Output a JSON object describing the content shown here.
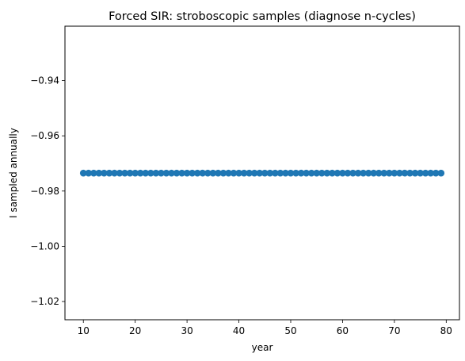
{
  "chart_data": {
    "type": "scatter",
    "title": "Forced SIR: stroboscopic samples (diagnose n-cycles)",
    "xlabel": "year",
    "ylabel": "I sampled annually",
    "xlim": [
      6.45,
      82.55
    ],
    "ylim": [
      -1.0266,
      -0.9203
    ],
    "xticks": [
      10,
      20,
      30,
      40,
      50,
      60,
      70,
      80
    ],
    "yticks": [
      -1.02,
      -1.0,
      -0.98,
      -0.96,
      -0.94
    ],
    "ytick_labels": [
      "−1.02",
      "−1.00",
      "−0.98",
      "−0.96",
      "−0.94"
    ],
    "xtick_labels": [
      "10",
      "20",
      "30",
      "40",
      "50",
      "60",
      "70",
      "80"
    ],
    "grid": false,
    "color": "#1f77b4",
    "x": [
      10,
      11,
      12,
      13,
      14,
      15,
      16,
      17,
      18,
      19,
      20,
      21,
      22,
      23,
      24,
      25,
      26,
      27,
      28,
      29,
      30,
      31,
      32,
      33,
      34,
      35,
      36,
      37,
      38,
      39,
      40,
      41,
      42,
      43,
      44,
      45,
      46,
      47,
      48,
      49,
      50,
      51,
      52,
      53,
      54,
      55,
      56,
      57,
      58,
      59,
      60,
      61,
      62,
      63,
      64,
      65,
      66,
      67,
      68,
      69,
      70,
      71,
      72,
      73,
      74,
      75,
      76,
      77,
      78,
      79
    ],
    "y": [
      -0.9735,
      -0.9735,
      -0.9735,
      -0.9735,
      -0.9735,
      -0.9735,
      -0.9735,
      -0.9735,
      -0.9735,
      -0.9735,
      -0.9735,
      -0.9735,
      -0.9735,
      -0.9735,
      -0.9735,
      -0.9735,
      -0.9735,
      -0.9735,
      -0.9735,
      -0.9735,
      -0.9735,
      -0.9735,
      -0.9735,
      -0.9735,
      -0.9735,
      -0.9735,
      -0.9735,
      -0.9735,
      -0.9735,
      -0.9735,
      -0.9735,
      -0.9735,
      -0.9735,
      -0.9735,
      -0.9735,
      -0.9735,
      -0.9735,
      -0.9735,
      -0.9735,
      -0.9735,
      -0.9735,
      -0.9735,
      -0.9735,
      -0.9735,
      -0.9735,
      -0.9735,
      -0.9735,
      -0.9735,
      -0.9735,
      -0.9735,
      -0.9735,
      -0.9735,
      -0.9735,
      -0.9735,
      -0.9735,
      -0.9735,
      -0.9735,
      -0.9735,
      -0.9735,
      -0.9735,
      -0.9735,
      -0.9735,
      -0.9735,
      -0.9735,
      -0.9735,
      -0.9735,
      -0.9735,
      -0.9735,
      -0.9735,
      -0.9735
    ]
  }
}
